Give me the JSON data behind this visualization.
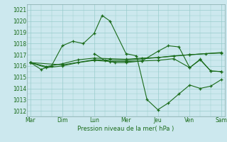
{
  "title": "Pression niveau de la mer( hPa )",
  "bg_color": "#cce8ee",
  "grid_color": "#99cccc",
  "line_color": "#1a6b1a",
  "ylim": [
    1011.5,
    1021.5
  ],
  "yticks": [
    1012,
    1013,
    1014,
    1015,
    1016,
    1017,
    1018,
    1019,
    1020,
    1021
  ],
  "day_labels": [
    "Mar",
    "Dim",
    "Lun",
    "Mer",
    "Jeu",
    "Ven",
    "Sam"
  ],
  "day_positions": [
    0,
    1,
    2,
    3,
    4,
    5,
    6
  ],
  "xlim": [
    -0.1,
    6.1
  ],
  "series1_x": [
    0,
    0.33,
    0.66,
    1.0,
    1.33,
    1.66,
    2.0,
    2.25,
    2.5,
    3.0,
    3.33,
    3.66,
    4.0,
    4.33,
    4.66,
    5.0,
    5.33,
    5.66,
    6.0
  ],
  "series1_y": [
    1016.3,
    1015.7,
    1016.0,
    1017.8,
    1018.2,
    1018.0,
    1018.9,
    1020.5,
    1020.0,
    1017.1,
    1016.9,
    1013.0,
    1012.1,
    1012.7,
    1013.5,
    1014.3,
    1014.0,
    1014.2,
    1014.8
  ],
  "series2_x": [
    0,
    0.5,
    1.0,
    1.5,
    2.0,
    2.5,
    3.0,
    3.5,
    4.0,
    4.5,
    5.0,
    5.5,
    6.0
  ],
  "series2_y": [
    1016.3,
    1015.95,
    1016.2,
    1016.55,
    1016.7,
    1016.65,
    1016.6,
    1016.7,
    1016.75,
    1016.9,
    1017.0,
    1017.1,
    1017.15
  ],
  "series3_x": [
    0,
    1.0,
    2.0,
    3.0,
    4.0,
    5.0,
    6.0
  ],
  "series3_y": [
    1016.3,
    1016.1,
    1016.55,
    1016.5,
    1016.75,
    1017.0,
    1017.2
  ],
  "series4_x": [
    0,
    0.5,
    1.0,
    1.5,
    2.0,
    2.5,
    3.0,
    3.5,
    4.0,
    4.5,
    5.0,
    5.33,
    5.66,
    6.0
  ],
  "series4_y": [
    1016.3,
    1015.85,
    1016.0,
    1016.3,
    1016.5,
    1016.4,
    1016.4,
    1016.45,
    1016.5,
    1016.65,
    1015.85,
    1016.55,
    1015.55,
    1015.5
  ],
  "series5_x": [
    2.0,
    2.33,
    2.66,
    3.0,
    3.5,
    4.0,
    4.33,
    4.66,
    5.0,
    5.33,
    5.66,
    6.0
  ],
  "series5_y": [
    1017.1,
    1016.5,
    1016.3,
    1016.3,
    1016.45,
    1017.3,
    1017.8,
    1017.7,
    1015.85,
    1016.6,
    1015.55,
    1015.5
  ]
}
